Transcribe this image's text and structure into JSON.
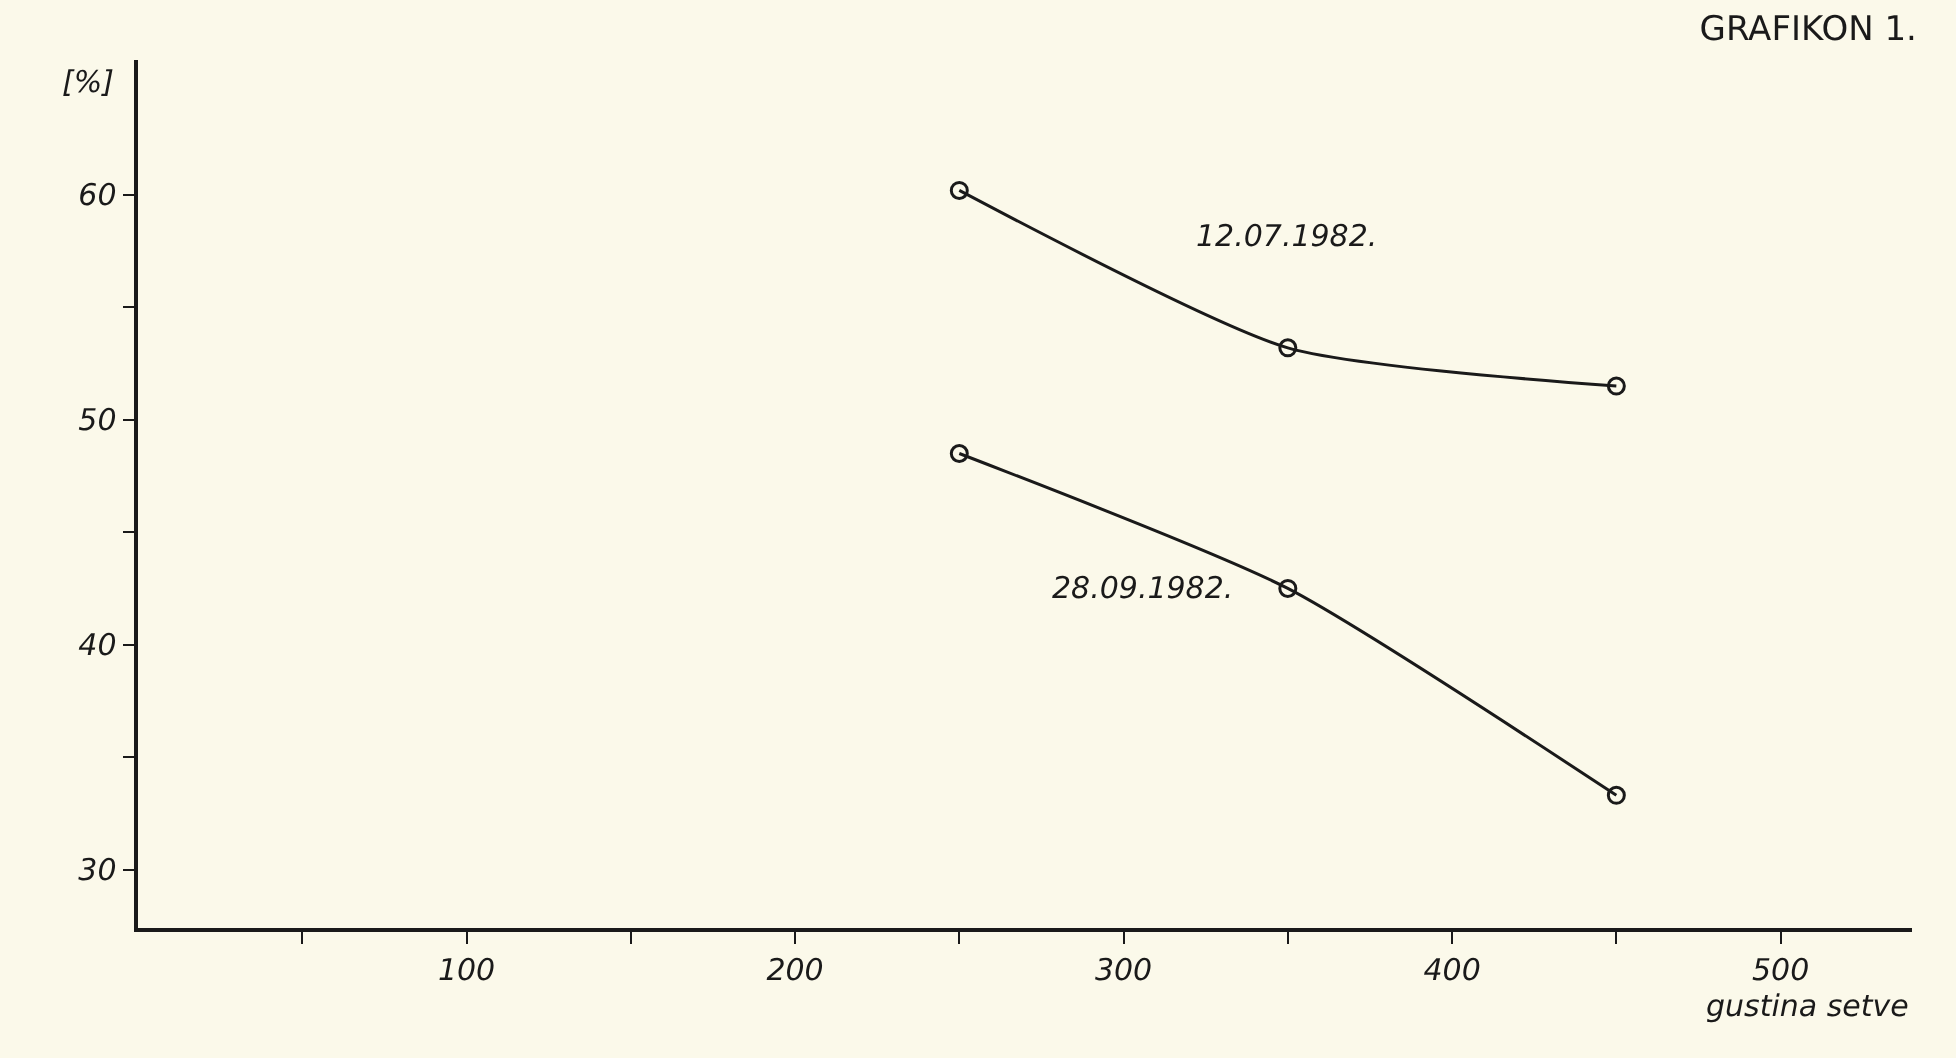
{
  "chart_data": {
    "type": "line",
    "title": "GRAFIKON 1.",
    "xlabel": "gustina setve",
    "ylabel": "[%]",
    "x": [
      250,
      350,
      450
    ],
    "series": [
      {
        "name": "12.07.1982.",
        "color": "#1a1a1a",
        "values": [
          60.2,
          53.2,
          51.5
        ]
      },
      {
        "name": "28.09.1982.",
        "color": "#1a1a1a",
        "values": [
          48.5,
          42.5,
          33.3
        ]
      }
    ],
    "xlim": [
      0,
      540
    ],
    "ylim": [
      27.4,
      66
    ],
    "xticks": [
      {
        "value": 50,
        "label": null
      },
      100,
      {
        "value": 150,
        "label": null
      },
      200,
      {
        "value": 250,
        "label": null
      },
      300,
      {
        "value": 350,
        "label": null
      },
      400,
      {
        "value": 450,
        "label": null
      },
      500
    ],
    "yticks": [
      30,
      {
        "value": 35,
        "label": null
      },
      40,
      {
        "value": 45,
        "label": null
      },
      50,
      {
        "value": 55,
        "label": null
      },
      60
    ],
    "marker": "circle",
    "line_style": "solid",
    "grid": false,
    "legend": false
  }
}
